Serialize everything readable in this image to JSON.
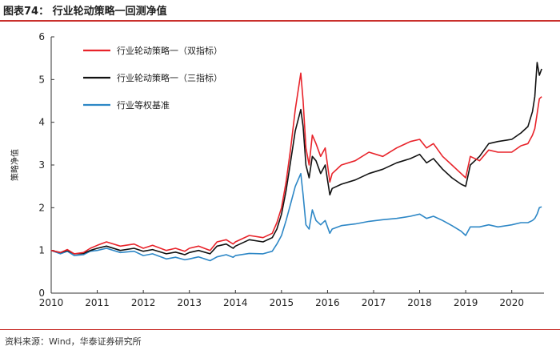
{
  "header": {
    "title": "图表74：  行业轮动策略一回测净值"
  },
  "footer": {
    "source": "资料来源：Wind，华泰证券研究所"
  },
  "chart_data": {
    "type": "line",
    "title": "",
    "xlabel": "",
    "ylabel": "策略净值",
    "xlim": [
      2010.0,
      2020.7
    ],
    "ylim": [
      0,
      6
    ],
    "xticks": [
      "2010",
      "2011",
      "2012",
      "2013",
      "2014",
      "2015",
      "2016",
      "2017",
      "2018",
      "2019",
      "2020"
    ],
    "yticks": [
      "0",
      "1",
      "2",
      "3",
      "4",
      "5",
      "6"
    ],
    "legend_position": "top-left",
    "series": [
      {
        "name": "行业轮动策略一（双指标）",
        "color": "#e8232a",
        "x": [
          2010.0,
          2010.2,
          2010.35,
          2010.5,
          2010.7,
          2010.85,
          2011.0,
          2011.2,
          2011.5,
          2011.8,
          2012.0,
          2012.2,
          2012.5,
          2012.7,
          2012.9,
          2013.0,
          2013.2,
          2013.45,
          2013.6,
          2013.8,
          2013.95,
          2014.0,
          2014.3,
          2014.6,
          2014.8,
          2014.9,
          2015.0,
          2015.1,
          2015.2,
          2015.3,
          2015.42,
          2015.47,
          2015.53,
          2015.6,
          2015.67,
          2015.75,
          2015.85,
          2015.95,
          2016.05,
          2016.1,
          2016.3,
          2016.6,
          2016.9,
          2017.2,
          2017.5,
          2017.8,
          2018.0,
          2018.15,
          2018.3,
          2018.5,
          2018.7,
          2018.9,
          2019.0,
          2019.1,
          2019.3,
          2019.5,
          2019.7,
          2020.0,
          2020.2,
          2020.35,
          2020.45,
          2020.5,
          2020.55,
          2020.6,
          2020.65
        ],
        "values": [
          1.0,
          0.95,
          1.02,
          0.92,
          0.95,
          1.05,
          1.12,
          1.2,
          1.1,
          1.15,
          1.05,
          1.12,
          1.0,
          1.05,
          0.98,
          1.05,
          1.1,
          1.0,
          1.2,
          1.25,
          1.15,
          1.2,
          1.35,
          1.3,
          1.4,
          1.65,
          2.0,
          2.6,
          3.4,
          4.3,
          5.15,
          4.5,
          3.4,
          3.0,
          3.7,
          3.5,
          3.2,
          3.4,
          2.6,
          2.8,
          3.0,
          3.1,
          3.3,
          3.2,
          3.4,
          3.55,
          3.6,
          3.4,
          3.5,
          3.2,
          3.0,
          2.8,
          2.7,
          3.2,
          3.1,
          3.35,
          3.3,
          3.3,
          3.45,
          3.5,
          3.7,
          3.85,
          4.2,
          4.55,
          4.6
        ]
      },
      {
        "name": "行业轮动策略一（三指标）",
        "color": "#111111",
        "x": [
          2010.0,
          2010.2,
          2010.35,
          2010.5,
          2010.7,
          2010.85,
          2011.0,
          2011.2,
          2011.5,
          2011.8,
          2012.0,
          2012.2,
          2012.5,
          2012.7,
          2012.9,
          2013.0,
          2013.2,
          2013.45,
          2013.6,
          2013.8,
          2013.95,
          2014.0,
          2014.3,
          2014.6,
          2014.8,
          2014.9,
          2015.0,
          2015.1,
          2015.2,
          2015.3,
          2015.42,
          2015.47,
          2015.53,
          2015.6,
          2015.67,
          2015.75,
          2015.85,
          2015.95,
          2016.05,
          2016.1,
          2016.3,
          2016.6,
          2016.9,
          2017.2,
          2017.5,
          2017.8,
          2018.0,
          2018.15,
          2018.3,
          2018.5,
          2018.7,
          2018.9,
          2019.0,
          2019.1,
          2019.3,
          2019.5,
          2019.7,
          2020.0,
          2020.2,
          2020.35,
          2020.45,
          2020.5,
          2020.55,
          2020.6,
          2020.65
        ],
        "values": [
          1.0,
          0.95,
          1.0,
          0.92,
          0.93,
          1.0,
          1.05,
          1.1,
          1.0,
          1.05,
          0.98,
          1.02,
          0.92,
          0.96,
          0.9,
          0.95,
          1.0,
          0.92,
          1.1,
          1.15,
          1.05,
          1.1,
          1.25,
          1.2,
          1.3,
          1.5,
          1.85,
          2.4,
          3.1,
          3.8,
          4.3,
          3.9,
          3.0,
          2.7,
          3.2,
          3.1,
          2.8,
          3.0,
          2.3,
          2.45,
          2.55,
          2.65,
          2.8,
          2.9,
          3.05,
          3.15,
          3.25,
          3.05,
          3.15,
          2.9,
          2.7,
          2.55,
          2.5,
          3.0,
          3.2,
          3.5,
          3.55,
          3.6,
          3.75,
          3.9,
          4.25,
          4.6,
          5.4,
          5.1,
          5.25
        ]
      },
      {
        "name": "行业等权基准",
        "color": "#2d87c6",
        "x": [
          2010.0,
          2010.2,
          2010.35,
          2010.5,
          2010.7,
          2010.85,
          2011.0,
          2011.2,
          2011.5,
          2011.8,
          2012.0,
          2012.2,
          2012.5,
          2012.7,
          2012.9,
          2013.0,
          2013.2,
          2013.45,
          2013.6,
          2013.8,
          2013.95,
          2014.0,
          2014.3,
          2014.6,
          2014.8,
          2014.9,
          2015.0,
          2015.1,
          2015.2,
          2015.3,
          2015.42,
          2015.47,
          2015.53,
          2015.6,
          2015.67,
          2015.75,
          2015.85,
          2015.95,
          2016.05,
          2016.1,
          2016.3,
          2016.6,
          2016.9,
          2017.2,
          2017.5,
          2017.8,
          2018.0,
          2018.15,
          2018.3,
          2018.5,
          2018.7,
          2018.9,
          2019.0,
          2019.1,
          2019.3,
          2019.5,
          2019.7,
          2020.0,
          2020.2,
          2020.35,
          2020.45,
          2020.5,
          2020.55,
          2020.6,
          2020.65
        ],
        "values": [
          1.0,
          0.92,
          0.98,
          0.88,
          0.9,
          0.98,
          1.0,
          1.05,
          0.95,
          0.98,
          0.88,
          0.92,
          0.8,
          0.84,
          0.78,
          0.8,
          0.85,
          0.76,
          0.85,
          0.9,
          0.84,
          0.88,
          0.93,
          0.92,
          0.98,
          1.15,
          1.35,
          1.7,
          2.1,
          2.5,
          2.8,
          2.3,
          1.6,
          1.5,
          1.95,
          1.7,
          1.6,
          1.7,
          1.4,
          1.5,
          1.58,
          1.62,
          1.68,
          1.72,
          1.75,
          1.8,
          1.85,
          1.75,
          1.8,
          1.7,
          1.58,
          1.45,
          1.35,
          1.55,
          1.55,
          1.6,
          1.55,
          1.6,
          1.65,
          1.65,
          1.7,
          1.75,
          1.85,
          2.0,
          2.02
        ]
      }
    ]
  }
}
